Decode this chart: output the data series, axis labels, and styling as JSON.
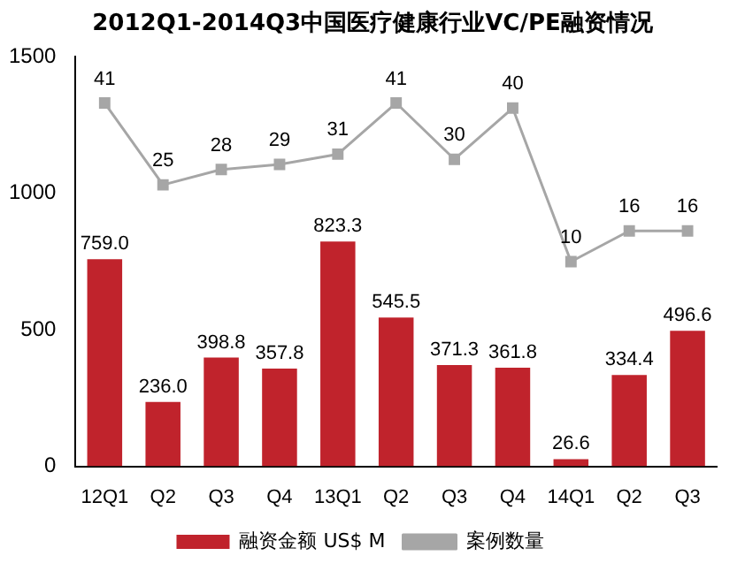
{
  "chart_data": {
    "type": "bar",
    "title": "2012Q1-2014Q3中国医疗健康行业VC/PE融资情况",
    "categories": [
      "12Q1",
      "Q2",
      "Q3",
      "Q4",
      "13Q1",
      "Q2",
      "Q3",
      "Q4",
      "14Q1",
      "Q2",
      "Q3"
    ],
    "series": [
      {
        "name": "融资金额 US$ M",
        "color": "#c0232c",
        "values": [
          759.0,
          236.0,
          398.8,
          357.8,
          823.3,
          545.5,
          371.3,
          361.8,
          26.6,
          334.4,
          496.6
        ],
        "value_labels": [
          "759.0",
          "236.0",
          "398.8",
          "357.8",
          "823.3",
          "545.5",
          "371.3",
          "361.8",
          "26.6",
          "334.4",
          "496.6"
        ]
      },
      {
        "name": "案例数量",
        "type": "line",
        "axis": "y2",
        "color": "#a6a6a6",
        "marker": "square",
        "values": [
          41,
          25,
          28,
          29,
          31,
          41,
          30,
          40,
          10,
          16,
          16
        ]
      }
    ],
    "ylim": [
      0,
      1500
    ],
    "yticks": [
      0,
      500,
      1000,
      1500
    ],
    "y2lim": [
      -30,
      50
    ],
    "data_labels": true,
    "grid": false,
    "legend": "bottom"
  }
}
